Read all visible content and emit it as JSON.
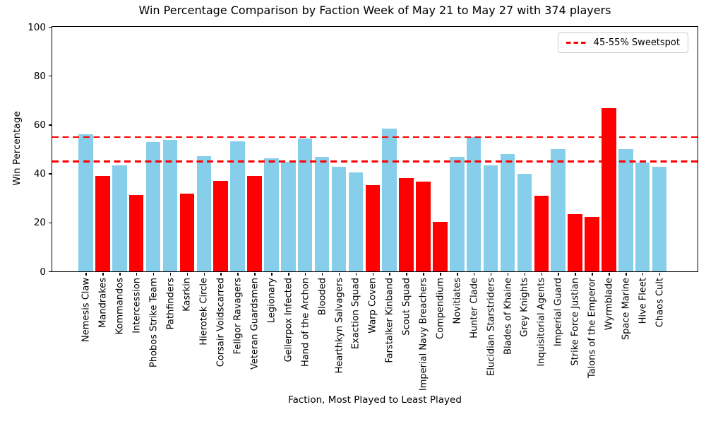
{
  "chart_data": {
    "type": "bar",
    "title": "Win Percentage Comparison by Faction Week of May 21 to May 27 with 374 players",
    "xlabel": "Faction, Most Played to Least Played",
    "ylabel": "Win Percentage",
    "ylim": [
      0,
      100
    ],
    "yticks": [
      0,
      20,
      40,
      60,
      80,
      100
    ],
    "grid": false,
    "legend": {
      "label": "45-55% Sweetspot",
      "position": "upper right"
    },
    "sweetspot_lines": [
      45,
      55
    ],
    "colors": {
      "skyblue": "#87CEEB",
      "red": "#FF0000",
      "sweetspot_line": "#FF0000",
      "axis": "#000000"
    },
    "categories": [
      "Nemesis Claw",
      "Mandrakes",
      "Kommandos",
      "Intercession",
      "Phobos Strike Team",
      "Pathfinders",
      "Kasrkin",
      "Hierotek Circle",
      "Corsair Voidscarred",
      "Fellgor Ravagers",
      "Veteran Guardsmen",
      "Legionary",
      "Gellerpox Infected",
      "Hand of the Archon",
      "Blooded",
      "Hearthkyn Salvagers",
      "Exaction Squad",
      "Warp Coven",
      "Farstalker Kinband",
      "Scout Squad",
      "Imperial Navy Breachers",
      "Compendium",
      "Novitiates",
      "Hunter Clade",
      "Elucidian Starstriders",
      "Blades of Khaine",
      "Grey Knights",
      "Inquisitorial Agents",
      "Imperial Guard",
      "Strike Force Justian",
      "Talons of the Emperor",
      "Wyrmblade",
      "Space Marine",
      "Hive Fleet",
      "Chaos Cult"
    ],
    "values": [
      56.0,
      39.1,
      43.4,
      31.2,
      53.0,
      53.7,
      31.8,
      47.1,
      36.9,
      53.3,
      39.1,
      46.3,
      44.9,
      54.2,
      46.8,
      42.7,
      40.5,
      35.2,
      58.4,
      38.1,
      36.7,
      20.1,
      46.9,
      54.8,
      43.4,
      48.0,
      39.8,
      30.9,
      50.0,
      23.3,
      22.3,
      66.7,
      50.0,
      44.6,
      42.8
    ],
    "bar_colors": [
      "skyblue",
      "red",
      "skyblue",
      "red",
      "skyblue",
      "skyblue",
      "red",
      "skyblue",
      "red",
      "skyblue",
      "red",
      "skyblue",
      "skyblue",
      "skyblue",
      "skyblue",
      "skyblue",
      "skyblue",
      "red",
      "skyblue",
      "red",
      "red",
      "red",
      "skyblue",
      "skyblue",
      "skyblue",
      "skyblue",
      "skyblue",
      "red",
      "skyblue",
      "red",
      "red",
      "red",
      "skyblue",
      "skyblue",
      "skyblue"
    ]
  }
}
